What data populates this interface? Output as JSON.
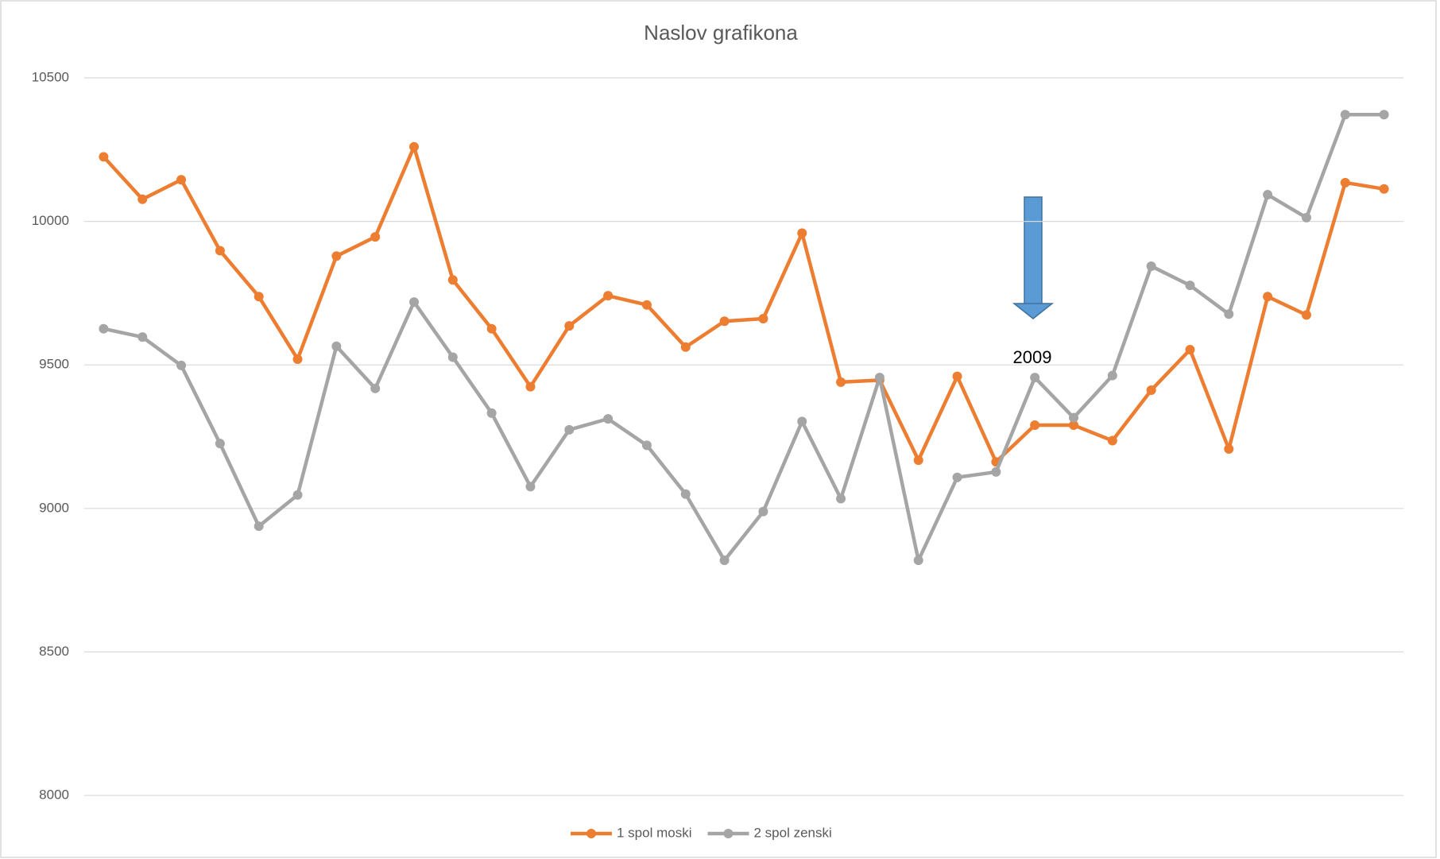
{
  "chart_data": {
    "type": "line",
    "title": "Naslov grafikona",
    "annotation": "2009",
    "ylim": [
      8000,
      10500
    ],
    "yticks": [
      8000,
      8500,
      9000,
      9500,
      10000,
      10500
    ],
    "grid": true,
    "legend": "bottom",
    "series": [
      {
        "name": "1 spol moski",
        "color": "#ed7d31",
        "values": [
          10225,
          10077,
          10145,
          9898,
          9738,
          9520,
          9879,
          9946,
          10260,
          9796,
          9626,
          9424,
          9636,
          9741,
          9709,
          9562,
          9652,
          9661,
          9959,
          9440,
          9447,
          9168,
          9460,
          9162,
          9290,
          9290,
          9236,
          9412,
          9553,
          9207,
          9738,
          9674,
          10135,
          10113
        ]
      },
      {
        "name": "2 spol zenski",
        "color": "#a5a5a5",
        "values": [
          9626,
          9597,
          9498,
          9226,
          8938,
          9047,
          9565,
          9418,
          9719,
          9527,
          9332,
          9076,
          9274,
          9312,
          9220,
          9050,
          8819,
          8989,
          9303,
          9034,
          9456,
          8819,
          9108,
          9127,
          9456,
          9316,
          9463,
          9844,
          9777,
          9677,
          10093,
          10013,
          10372,
          10372
        ]
      }
    ]
  }
}
